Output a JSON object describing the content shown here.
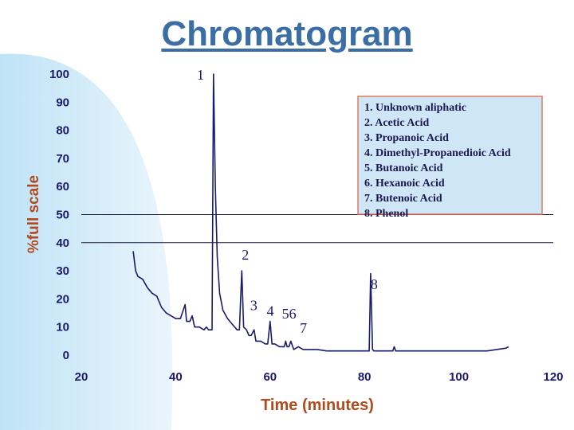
{
  "title": "Chromatogram",
  "chart_data": {
    "type": "line",
    "xlabel": "Time (minutes)",
    "ylabel": "%full scale",
    "xlim": [
      20,
      120
    ],
    "ylim": [
      0,
      100
    ],
    "xticks": [
      20,
      40,
      60,
      80,
      100,
      120
    ],
    "yticks": [
      0,
      10,
      20,
      30,
      40,
      50,
      60,
      70,
      80,
      90,
      100
    ],
    "grid": false,
    "reference_lines_y": [
      50,
      40
    ],
    "colors": {
      "trace": "#1a1a6e",
      "legend_bg": "#cfe6f7",
      "legend_border": "#e07a5f",
      "axis_text": "#1a1a6e",
      "axis_title": "#b24a1e",
      "title": "#3a6ea5"
    },
    "series": [
      {
        "values": [
          [
            31,
            37
          ],
          [
            31.5,
            30
          ],
          [
            32,
            28
          ],
          [
            33,
            27
          ],
          [
            34,
            24
          ],
          [
            35,
            22
          ],
          [
            36,
            21
          ],
          [
            37,
            17
          ],
          [
            38,
            15
          ],
          [
            39,
            14
          ],
          [
            40,
            13
          ],
          [
            41,
            13
          ],
          [
            42,
            18
          ],
          [
            42.3,
            12
          ],
          [
            43,
            12
          ],
          [
            43.5,
            14
          ],
          [
            44,
            10
          ],
          [
            45,
            10
          ],
          [
            46,
            9
          ],
          [
            46.5,
            10
          ],
          [
            47,
            9
          ],
          [
            47.7,
            9
          ],
          [
            48,
            100
          ],
          [
            48.4,
            60
          ],
          [
            48.8,
            35
          ],
          [
            49.3,
            22
          ],
          [
            50,
            16
          ],
          [
            51,
            13
          ],
          [
            52,
            11
          ],
          [
            53,
            9
          ],
          [
            53.5,
            9
          ],
          [
            54,
            30
          ],
          [
            54.4,
            10
          ],
          [
            55,
            9
          ],
          [
            55.5,
            7
          ],
          [
            56,
            7
          ],
          [
            56.6,
            9
          ],
          [
            57,
            5
          ],
          [
            58,
            5
          ],
          [
            59,
            4
          ],
          [
            59.5,
            4
          ],
          [
            60,
            12
          ],
          [
            60.4,
            4
          ],
          [
            61,
            4
          ],
          [
            62,
            3
          ],
          [
            63,
            3
          ],
          [
            63.3,
            5
          ],
          [
            63.6,
            3
          ],
          [
            64,
            3
          ],
          [
            64.4,
            5
          ],
          [
            64.8,
            3
          ],
          [
            65,
            2
          ],
          [
            66,
            3
          ],
          [
            67,
            2
          ],
          [
            68,
            2
          ],
          [
            69,
            2
          ],
          [
            70,
            2
          ],
          [
            72,
            1.5
          ],
          [
            74,
            1.5
          ],
          [
            76,
            1.5
          ],
          [
            78,
            1.5
          ],
          [
            80,
            1.5
          ],
          [
            81,
            1.5
          ],
          [
            81.3,
            29
          ],
          [
            81.7,
            2
          ],
          [
            82,
            1.5
          ],
          [
            84,
            1.5
          ],
          [
            86,
            1.5
          ],
          [
            86.3,
            3
          ],
          [
            86.6,
            1.5
          ],
          [
            88,
            1.5
          ],
          [
            90,
            1.5
          ],
          [
            92,
            1.5
          ],
          [
            94,
            1.5
          ],
          [
            96,
            1.5
          ],
          [
            98,
            1.5
          ],
          [
            100,
            1.5
          ],
          [
            102,
            1.5
          ],
          [
            104,
            1.5
          ],
          [
            106,
            1.5
          ],
          [
            108,
            2
          ],
          [
            110,
            2.5
          ],
          [
            110.5,
            3
          ]
        ]
      }
    ],
    "peak_labels": [
      {
        "text": "1",
        "x": 44.5,
        "y": 98
      },
      {
        "text": "2",
        "x": 54,
        "y": 34
      },
      {
        "text": "3",
        "x": 55.8,
        "y": 16
      },
      {
        "text": "4",
        "x": 59.3,
        "y": 14
      },
      {
        "text": "56",
        "x": 62.5,
        "y": 13
      },
      {
        "text": "7",
        "x": 66.3,
        "y": 8
      },
      {
        "text": "8",
        "x": 81.3,
        "y": 23.5
      }
    ],
    "legend": {
      "placement": "top-right",
      "items": [
        "1. Unknown aliphatic",
        "2. Acetic Acid",
        "3. Propanoic Acid",
        "4. Dimethyl-Propanedioic Acid",
        "5. Butanoic Acid",
        "6. Hexanoic Acid",
        "7. Butenoic Acid",
        "8. Phenol"
      ]
    }
  }
}
